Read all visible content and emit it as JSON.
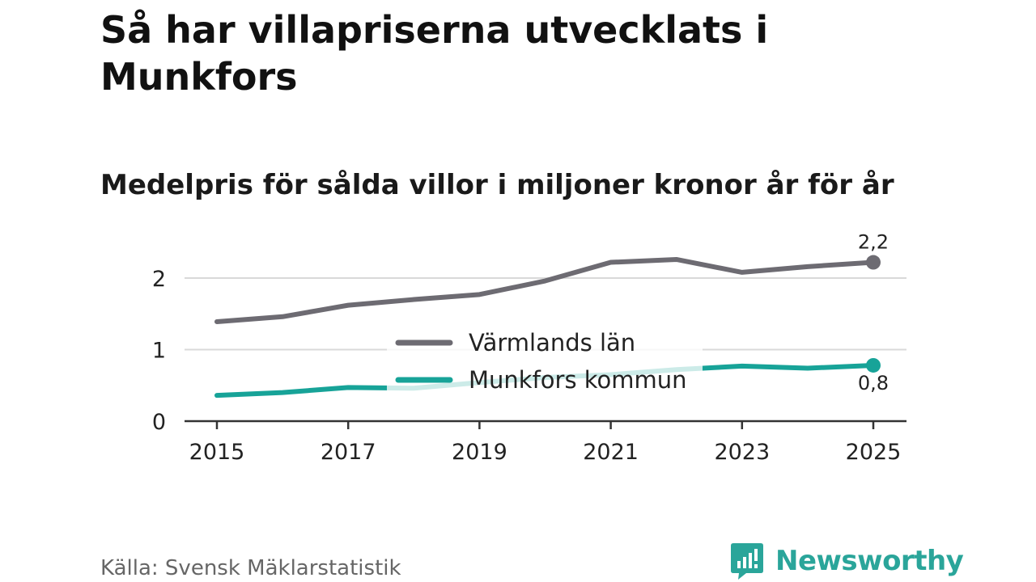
{
  "title": "Så har villapriserna utvecklats i Munkfors",
  "subtitle": "Medelpris för sålda villor i miljoner kronor år för år",
  "source": "Källa: Svensk Mäklarstatistik",
  "brand": "Newsworthy",
  "colors": {
    "series_1": "#6d6b72",
    "series_2": "#17a398",
    "grid": "#d9d9d9",
    "axis": "#333333",
    "brand": "#2aa59a"
  },
  "chart_data": {
    "type": "line",
    "title": "Så har villapriserna utvecklats i Munkfors",
    "subtitle": "Medelpris för sålda villor i miljoner kronor år för år",
    "xlabel": "",
    "ylabel": "",
    "x": [
      2015,
      2016,
      2017,
      2018,
      2019,
      2020,
      2021,
      2022,
      2023,
      2024,
      2025
    ],
    "x_ticks": [
      "2015",
      "2017",
      "2019",
      "2021",
      "2023",
      "2025"
    ],
    "y_ticks": [
      "0",
      "1",
      "2"
    ],
    "ylim": [
      0,
      2.4
    ],
    "grid": true,
    "legend_position": "center",
    "series": [
      {
        "name": "Värmlands län",
        "color": "#6d6b72",
        "values": [
          1.39,
          1.46,
          1.62,
          1.7,
          1.77,
          1.96,
          2.22,
          2.26,
          2.08,
          2.16,
          2.22
        ],
        "end_label": "2,2"
      },
      {
        "name": "Munkfors kommun",
        "color": "#17a398",
        "values": [
          0.36,
          0.4,
          0.47,
          0.46,
          0.54,
          0.61,
          0.65,
          0.72,
          0.77,
          0.74,
          0.78
        ],
        "end_label": "0,8"
      }
    ]
  }
}
